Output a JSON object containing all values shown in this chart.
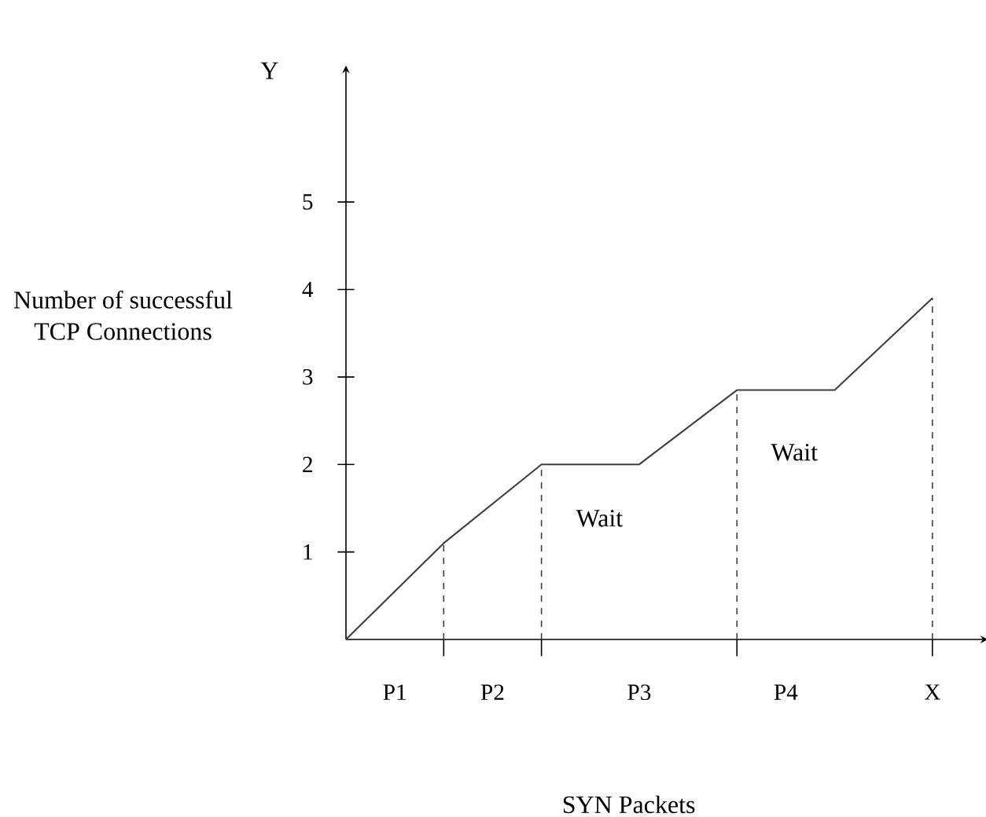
{
  "chart_data": {
    "type": "line",
    "xlabel": "SYN Packets",
    "ylabel": "Number of successful TCP Connections",
    "categories": [
      null,
      "P1",
      null,
      "P2",
      null,
      null,
      "P3",
      null,
      null,
      "P4",
      null,
      null,
      "X"
    ],
    "ylim": [
      0,
      6.5
    ],
    "yticks": [
      1,
      2,
      3,
      4,
      5
    ],
    "marker": "none",
    "series": [
      {
        "color": "#404040",
        "values": [
          0,
          null,
          1.1,
          null,
          2,
          null,
          2,
          null,
          2.85,
          null,
          2.85,
          null,
          3.9
        ],
        "errors": [
          null,
          null,
          [
            0,
            1.1
          ],
          null,
          [
            0,
            2
          ],
          null,
          null,
          null,
          [
            0,
            2.85
          ],
          null,
          null,
          null,
          [
            0,
            3.9
          ]
        ],
        "line_style": "solid"
      }
    ],
    "annotations": [
      "Y",
      "Wait",
      "Wait"
    ]
  }
}
